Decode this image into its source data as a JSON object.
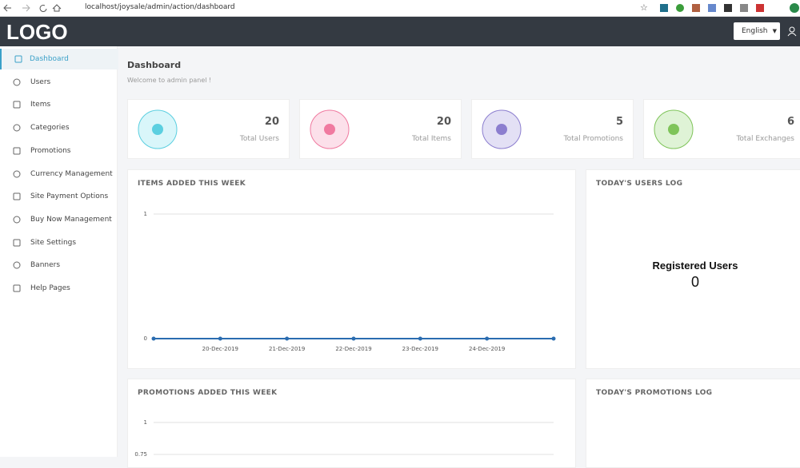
{
  "browser": {
    "url": "localhost/joysale/admin/action/dashboard"
  },
  "header": {
    "logo": "LOGO",
    "language": "English"
  },
  "sidebar": {
    "items": [
      "Dashboard",
      "Users",
      "Items",
      "Categories",
      "Promotions",
      "Currency Management",
      "Site Payment Options",
      "Buy Now Management",
      "Site Settings",
      "Banners",
      "Help Pages"
    ]
  },
  "page": {
    "title": "Dashboard",
    "subtitle": "Welcome to admin panel !"
  },
  "stats": [
    {
      "value": 20,
      "label": "Total Users"
    },
    {
      "value": 20,
      "label": "Total Items"
    },
    {
      "value": 5,
      "label": "Total Promotions"
    },
    {
      "value": 6,
      "label": "Total Exchanges"
    }
  ],
  "items_chart": {
    "type": "line",
    "title": "ITEMS ADDED THIS WEEK",
    "categories": [
      null,
      "20-Dec-2019",
      "21-Dec-2019",
      "22-Dec-2019",
      "23-Dec-2019",
      "24-Dec-2019",
      null
    ],
    "values": [
      0,
      0,
      0,
      0,
      0,
      0,
      0
    ],
    "color": "#2a6cb0",
    "ylim": [
      0,
      1
    ],
    "yticks": [
      0,
      1
    ],
    "grid": true
  },
  "users_log": {
    "title": "TODAY'S USERS LOG",
    "label": "Registered Users",
    "value": 0
  },
  "promotions_chart": {
    "type": "line",
    "title": "PROMOTIONS ADDED THIS WEEK",
    "ylim": [
      0,
      1
    ],
    "yticks": [
      0.75,
      1
    ],
    "grid": true
  },
  "promotions_log": {
    "title": "TODAY'S PROMOTIONS LOG"
  }
}
